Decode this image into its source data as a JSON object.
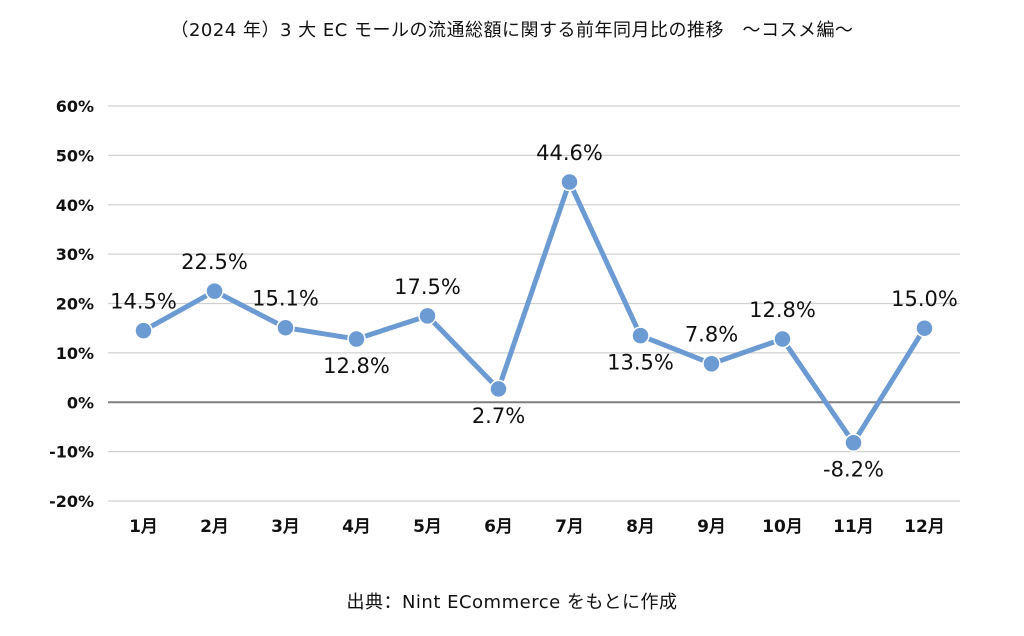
{
  "chart_data": {
    "type": "line",
    "title": "（2024 年）3 大 EC モールの流通総額に関する前年同月比の推移　～コスメ編～",
    "categories": [
      "1月",
      "2月",
      "3月",
      "4月",
      "5月",
      "6月",
      "7月",
      "8月",
      "9月",
      "10月",
      "11月",
      "12月"
    ],
    "series": [
      {
        "values": [
          14.5,
          22.5,
          15.1,
          12.8,
          17.5,
          2.7,
          44.6,
          13.5,
          7.8,
          12.8,
          -8.2,
          15.0
        ],
        "data_labels": [
          "14.5%",
          "22.5%",
          "15.1%",
          "12.8%",
          "17.5%",
          "2.7%",
          "44.6%",
          "13.5%",
          "7.8%",
          "12.8%",
          "-8.2%",
          "15.0%"
        ],
        "label_side": [
          "above",
          "above",
          "above",
          "below",
          "above",
          "below",
          "above",
          "below",
          "above",
          "above",
          "below",
          "above"
        ],
        "color": "#6b9bd2"
      }
    ],
    "ylim": [
      -20,
      60
    ],
    "yticks": [
      -20,
      -10,
      0,
      10,
      20,
      30,
      40,
      50,
      60
    ],
    "ytick_labels": [
      "-20%",
      "-10%",
      "0%",
      "10%",
      "20%",
      "30%",
      "40%",
      "50%",
      "60%"
    ],
    "grid": true,
    "xlabel": "",
    "ylabel": ""
  },
  "source_note": "出典：Nint ECommerce をもとに作成",
  "colors": {
    "line": "#6b9bd2",
    "grid": "#d0d0d0",
    "zero_line": "#7f7f7f",
    "text": "#111111"
  }
}
